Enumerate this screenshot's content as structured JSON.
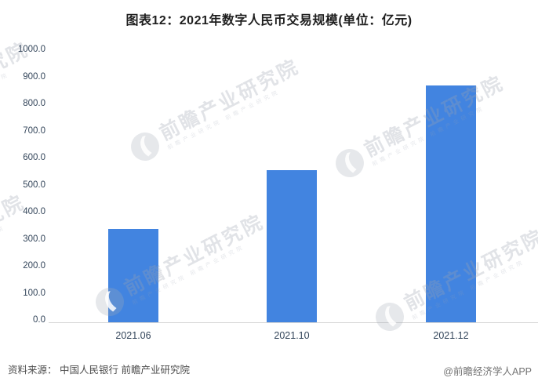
{
  "title": "图表12：2021年数字人民币交易规模(单位：亿元)",
  "footer": {
    "source": "资料来源： 中国人民银行 前瞻产业研究院",
    "credit": "@前瞻经济学人APP"
  },
  "watermark": {
    "brand": "前瞻产业研究院",
    "subtext": "前瞻产业研究院 前瞻产业研究院",
    "logo": "qianzhan-circle-logo"
  },
  "colors": {
    "bar": "#4284e0",
    "axis_label": "#33455a",
    "axis_line": "#d6d6d6",
    "title_text": "#1f1f1f",
    "source_text": "#4d4d4d",
    "credit_text": "#737373",
    "watermark": "#e9ebee"
  },
  "chart_data": {
    "type": "bar",
    "title": "图表12：2021年数字人民币交易规模(单位：亿元)",
    "unit": "亿元",
    "categories": [
      "2021.06",
      "2021.10",
      "2021.12"
    ],
    "values": [
      345.0,
      562.0,
      875.7
    ],
    "xlabel": "",
    "ylabel": "",
    "ylim": [
      0,
      1000
    ],
    "ytick_interval": 100,
    "ytick_labels": [
      "0.0",
      "100.0",
      "200.0",
      "300.0",
      "400.0",
      "500.0",
      "600.0",
      "700.0",
      "800.0",
      "900.0",
      "1000.0"
    ],
    "grid": false,
    "legend": null,
    "bar_color": "#4284e0"
  }
}
